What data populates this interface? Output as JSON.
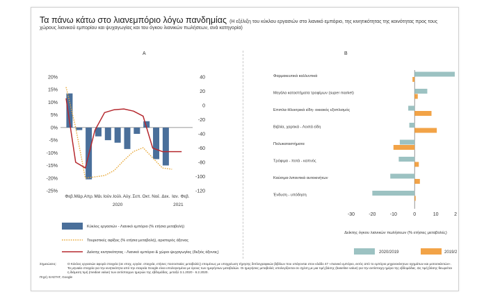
{
  "title": {
    "main": "Τα πάνω κάτω στο λιανεμπόριο λόγω πανδημίας",
    "sub": "(Η εξέλιξη του κύκλου εργασιών στο λιανικό εμπόριο, της κινητικότητας της κοινότητας προς τους χώρους λιανικού εμπορίου και ψυχαγωγίας και του όγκου λιανικών πωλήσεων, ανά κατηγορία)"
  },
  "colors": {
    "bar": "#4a6f9a",
    "tourism": "#e8a93a",
    "mobility": "#b5282e",
    "s2020": "#9cc2c2",
    "s2019": "#f2a347"
  },
  "chart_data": [
    {
      "panel": "A",
      "type": "bar",
      "categories": [
        "Φεβ.",
        "Μάρ.",
        "Απρ.",
        "Μάι.",
        "Ιούν.",
        "Ιούλ.",
        "Αύγ.",
        "Σεπ.",
        "Οκτ.",
        "Νοέ.",
        "Δεκ.",
        "Ιαν.",
        "Φεβ."
      ],
      "year_labels": [
        "2020",
        "2021"
      ],
      "left_ticks": [
        "20%",
        "15%",
        "10%",
        "5%",
        "0%",
        "-5%",
        "-10%",
        "-15%",
        "-20%",
        "-25%"
      ],
      "right_ticks": [
        "40",
        "20",
        "0",
        "-20",
        "-40",
        "-60",
        "-80",
        "-100",
        "-120"
      ],
      "ylim_left": [
        -25,
        20
      ],
      "ylim_right": [
        -120,
        40
      ],
      "series": [
        {
          "name": "Κύκλος εργασιών - Λιανικό εμπόριο (% ετήσια μεταβολή)",
          "kind": "bar",
          "axis": "left",
          "values": [
            13.5,
            -1,
            -20.5,
            -3.5,
            -5,
            -6,
            -8.5,
            -2.5,
            2.5,
            -12.5,
            -15,
            null,
            null
          ]
        },
        {
          "name": "Τουριστικές αφίξεις (% ετήσια μεταβολή), αριστερός άξονας",
          "kind": "line",
          "axis": "left",
          "style": "dotted",
          "values": [
            16,
            0,
            -20,
            -19.5,
            -19,
            -17,
            -13,
            -9.5,
            -8,
            -12,
            -16,
            -16.5,
            null
          ]
        },
        {
          "name": "Δείκτης κινητικότητας - Λιανικό εμπόριο & χώροι ψυχαγωγίας (δεξιός άξονας)",
          "kind": "line",
          "axis": "right",
          "style": "dashed",
          "values": [
            10,
            -80,
            -88,
            -35,
            -10,
            -6,
            -5,
            -8,
            -15,
            -60,
            -65,
            -65,
            -65
          ]
        }
      ]
    },
    {
      "panel": "B",
      "type": "bar",
      "orientation": "horizontal",
      "categories": [
        "Φαρμακευτικά καλλυντικά",
        "Μεγάλα καταστήματα τροφίμων (super market)",
        "Επιπλα-Ηλεκτρικά είδη- οικιακός εξοπλισμός",
        "Βιβλία, χαρτικά - Λοιπά είδη",
        "Πολυκαταστήματα",
        "Τρόφιμα - ποτά - καπνός",
        "Καύσιμα-λιπαντικά αυτοκινήτων",
        "Ένδυση - υπόδηση"
      ],
      "xlim": [
        -30,
        20
      ],
      "x_ticks": [
        "-30",
        "-20",
        "-10",
        "0",
        "10",
        "20"
      ],
      "xlabel": "Δείκτης όγκου λιανικών πωλήσεων (% ετήσιες μεταβολές)",
      "series": [
        {
          "name": "2020/2019",
          "values": [
            19,
            6,
            -3,
            -2.5,
            -7,
            -7.5,
            -11.5,
            -20
          ]
        },
        {
          "name": "2019/2018",
          "values": [
            -1,
            1.5,
            8,
            10.5,
            -10,
            2,
            2.5,
            0.5
          ]
        }
      ]
    }
  ],
  "notes": {
    "label": "Σημειώσεις:",
    "n1": "Ο Κύκλος εργασιών αφορά στοιχεία (σε εποχ. εργάσ. στοιχεία, ετήσιες ποσοστιαίες μεταβολές) επομένως με υποχρέωση τήρησης διπλογραφικών βιβλίων που υπάγονται στον κλάδο 47 «Λιανικό εμπόριο, εκτός από το εμπόριο μηχανοκίνητων οχημάτων και μοτοσικλετών».",
    "n2": "Τα μηνιαία στοιχεία για την κινητικότητα από την εταιρεία Google είναι υπολογισμένα με όρους των ημερήσιων μεταβολών. Οι ημερήσιες μεταβολές υπολογίζονται σε σχέση με μια τιμή βάσης (baseline value) για την αντίστοιχη ημέρα της εβδομάδας. Ως τιμή βάσης θεωρείται η διάμεση τιμή (median value) των αντίστοιχων ημερών της εβδομάδας, μεταξύ 3.1.2020 - 6.2.2020.",
    "source": "Πηγή: ΕΛΣΤΑΤ, Google"
  }
}
